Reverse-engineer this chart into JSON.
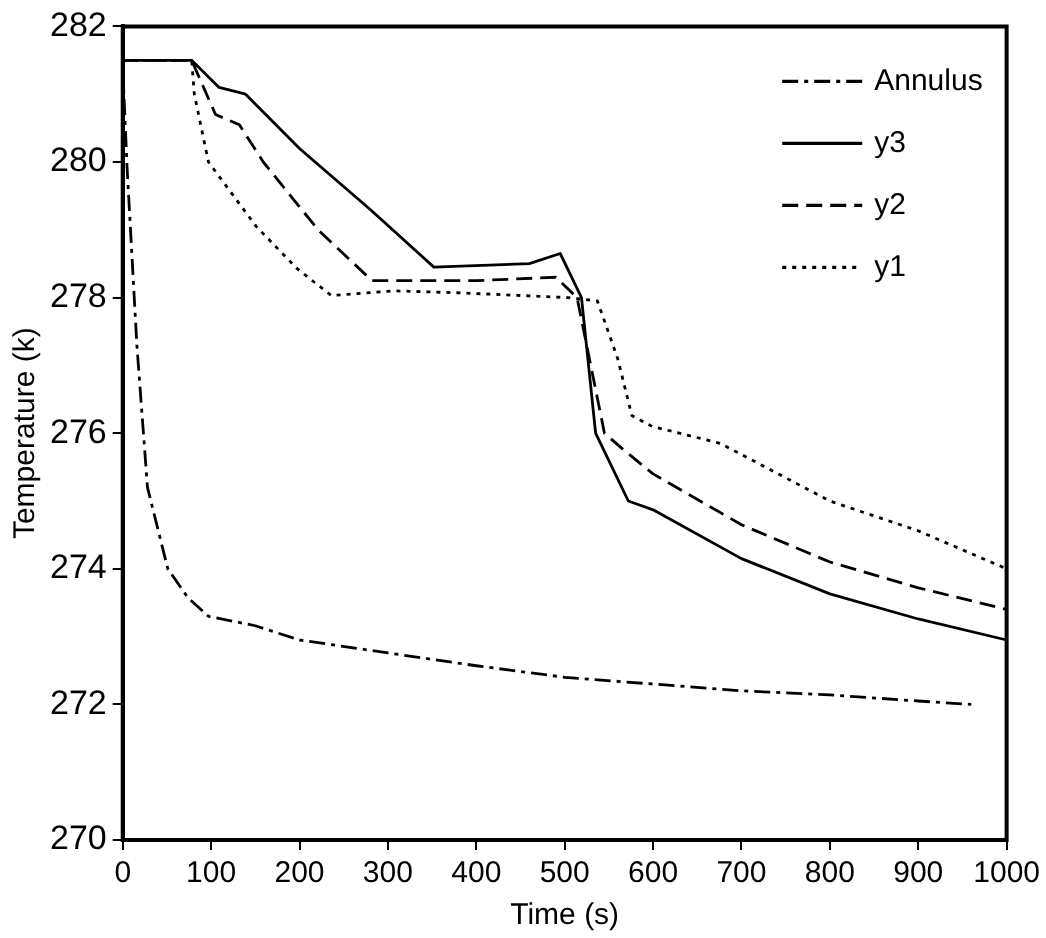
{
  "chart_data": {
    "type": "line",
    "xlabel": "Time (s)",
    "ylabel": "Temperature (k)",
    "xlim": [
      0,
      1000
    ],
    "ylim": [
      270,
      282
    ],
    "xticks": [
      0,
      100,
      200,
      300,
      400,
      500,
      600,
      700,
      800,
      900,
      1000
    ],
    "yticks": [
      270,
      272,
      274,
      276,
      278,
      280,
      282
    ],
    "grid": false,
    "legend": "top right",
    "marker": "none",
    "series": [
      {
        "name": "Annulus",
        "color": "#000000",
        "line_style": "dashdot",
        "x": [
          0,
          5,
          16,
          28,
          51,
          74,
          97,
          150,
          200,
          300,
          400,
          500,
          600,
          700,
          800,
          900,
          960
        ],
        "values": [
          281.4,
          279.9,
          277.3,
          275.2,
          274.0,
          273.57,
          273.3,
          273.16,
          272.95,
          272.76,
          272.57,
          272.4,
          272.3,
          272.2,
          272.14,
          272.05,
          272.0
        ]
      },
      {
        "name": "y3",
        "color": "#000000",
        "line_style": "solid",
        "x": [
          0,
          78,
          109,
          139,
          200,
          280,
          352,
          460,
          495,
          519,
          535,
          572,
          600,
          700,
          800,
          900,
          1000
        ],
        "values": [
          281.5,
          281.5,
          281.1,
          281.0,
          280.2,
          279.3,
          278.45,
          278.5,
          278.65,
          278.0,
          276.0,
          275.0,
          274.87,
          274.15,
          273.63,
          273.26,
          272.95
        ]
      },
      {
        "name": "y2",
        "color": "#000000",
        "line_style": "dashed",
        "x": [
          0,
          78,
          105,
          132,
          159,
          221,
          282,
          400,
          490,
          514,
          545,
          568,
          600,
          700,
          800,
          900,
          1000
        ],
        "values": [
          281.5,
          281.5,
          280.7,
          280.55,
          280.0,
          279.0,
          278.25,
          278.25,
          278.3,
          278.0,
          276.0,
          275.74,
          275.4,
          274.65,
          274.1,
          273.72,
          273.4
        ]
      },
      {
        "name": "y1",
        "color": "#000000",
        "line_style": "dotted",
        "x": [
          0,
          78,
          81,
          97,
          151,
          197,
          236,
          306,
          382,
          504,
          537,
          560,
          576,
          599,
          676,
          800,
          900,
          1000
        ],
        "values": [
          281.5,
          281.5,
          281.0,
          280.0,
          279.05,
          278.43,
          278.03,
          278.1,
          278.07,
          278.0,
          277.95,
          277.1,
          276.26,
          276.1,
          275.85,
          275.0,
          274.56,
          274.0
        ]
      }
    ]
  }
}
